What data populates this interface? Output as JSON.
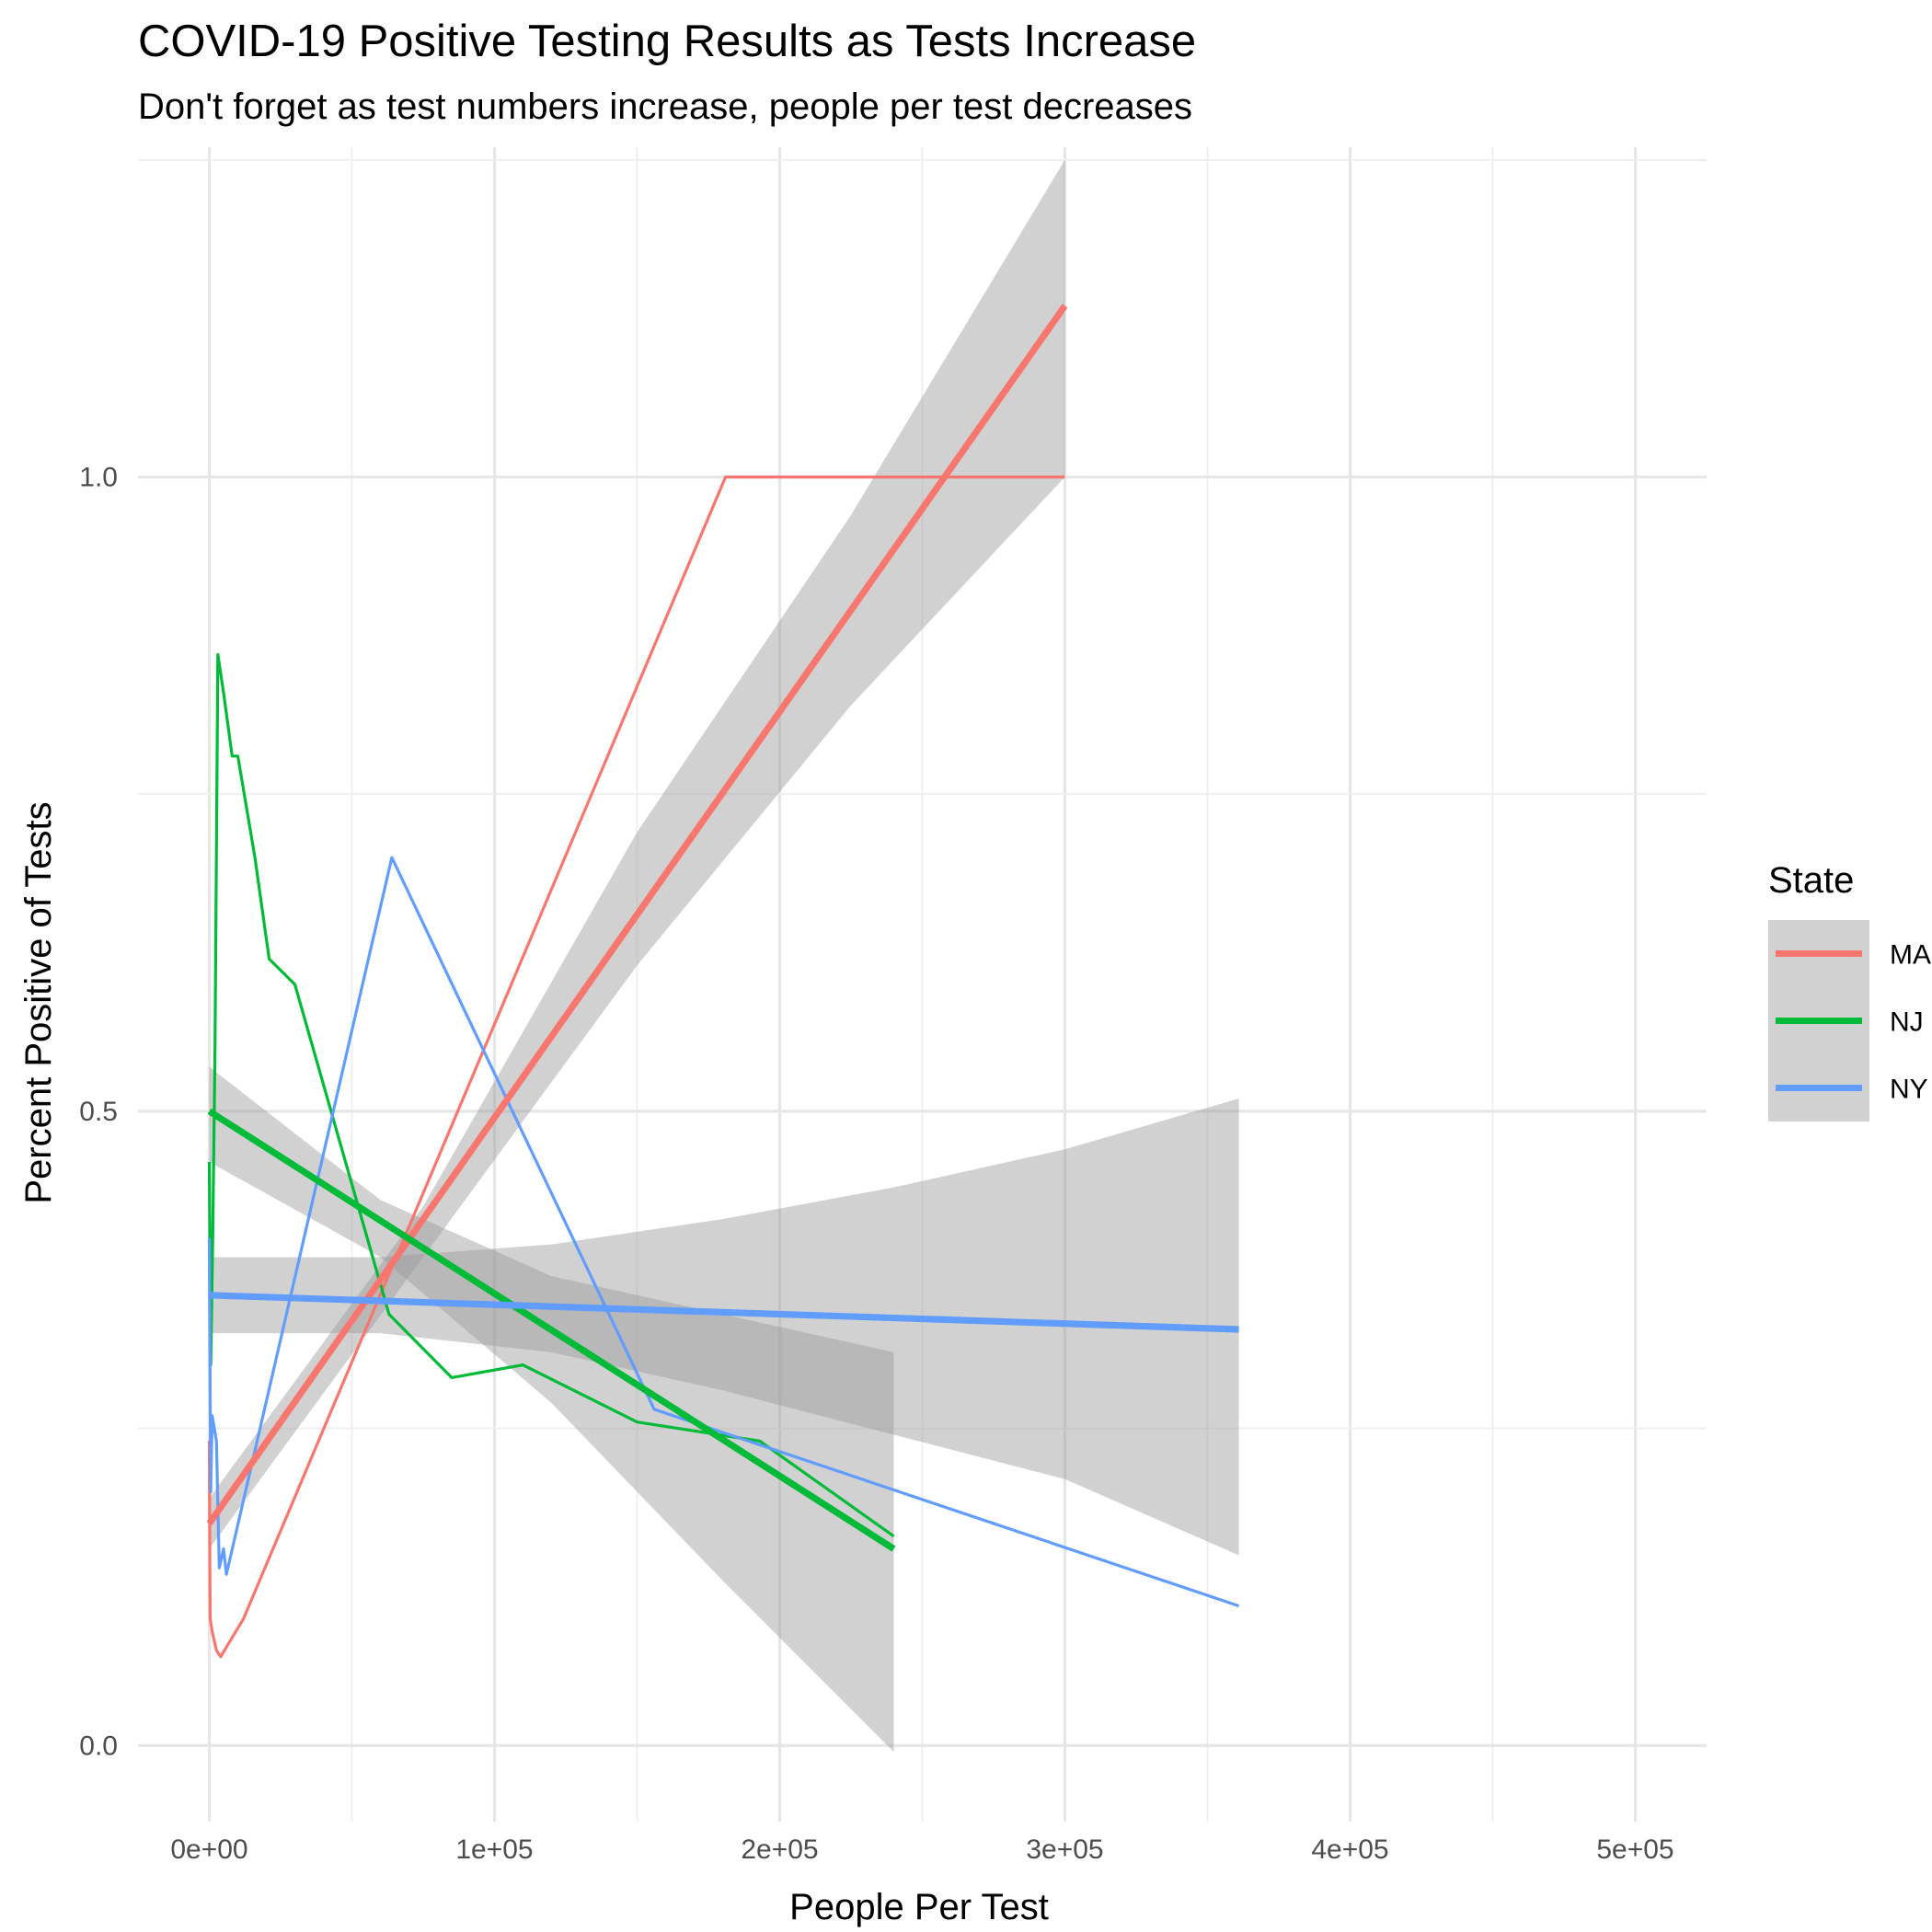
{
  "chart_data": {
    "type": "line",
    "title": "COVID-19 Positive Testing Results as Tests Increase",
    "subtitle": "Don't forget as test numbers increase, people per test decreases",
    "xlabel": "People Per Test",
    "ylabel": "Percent Positive of Tests",
    "xlim": [
      -25000,
      525000
    ],
    "ylim": [
      -0.06,
      1.26
    ],
    "x_ticks": [
      0,
      100000,
      200000,
      300000,
      400000,
      500000
    ],
    "x_tick_labels": [
      "0e+00",
      "1e+05",
      "2e+05",
      "3e+05",
      "4e+05",
      "5e+05"
    ],
    "y_ticks": [
      0.0,
      0.5,
      1.0
    ],
    "y_tick_labels": [
      "0.0",
      "0.5",
      "1.0"
    ],
    "grid": true,
    "legend": {
      "title": "State",
      "position": "right"
    },
    "series": [
      {
        "name": "MA",
        "color": "#F8766D",
        "points": [
          [
            0,
            0.24
          ],
          [
            300,
            0.1
          ],
          [
            1000,
            0.09
          ],
          [
            2500,
            0.075
          ],
          [
            4000,
            0.07
          ],
          [
            12000,
            0.1
          ],
          [
            181000,
            1.0
          ],
          [
            300000,
            1.0
          ]
        ],
        "trend": {
          "x": [
            0,
            300000
          ],
          "y": [
            0.175,
            1.135
          ]
        },
        "band": {
          "x": [
            0,
            75000,
            150000,
            225000,
            300000
          ],
          "lower": [
            0.155,
            0.385,
            0.615,
            0.82,
            1.0
          ],
          "upper": [
            0.195,
            0.425,
            0.72,
            0.97,
            1.25
          ]
        }
      },
      {
        "name": "NJ",
        "color": "#00BA38",
        "points": [
          [
            0,
            0.46
          ],
          [
            500,
            0.3
          ],
          [
            1200,
            0.4
          ],
          [
            2000,
            0.55
          ],
          [
            3000,
            0.86
          ],
          [
            5000,
            0.83
          ],
          [
            8000,
            0.78
          ],
          [
            10000,
            0.78
          ],
          [
            16000,
            0.7
          ],
          [
            21000,
            0.62
          ],
          [
            30000,
            0.6
          ],
          [
            63000,
            0.34
          ],
          [
            85000,
            0.29
          ],
          [
            110000,
            0.3
          ],
          [
            150000,
            0.255
          ],
          [
            193000,
            0.24
          ],
          [
            240000,
            0.165
          ]
        ],
        "trend": {
          "x": [
            0,
            240000
          ],
          "y": [
            0.5,
            0.155
          ]
        },
        "band": {
          "x": [
            0,
            60000,
            120000,
            180000,
            240000
          ],
          "lower": [
            0.46,
            0.385,
            0.27,
            0.13,
            -0.005
          ],
          "upper": [
            0.535,
            0.43,
            0.37,
            0.34,
            0.31
          ]
        }
      },
      {
        "name": "NY",
        "color": "#619CFF",
        "points": [
          [
            0,
            0.4
          ],
          [
            500,
            0.2
          ],
          [
            1000,
            0.26
          ],
          [
            2500,
            0.24
          ],
          [
            3500,
            0.14
          ],
          [
            5000,
            0.155
          ],
          [
            6000,
            0.135
          ],
          [
            64000,
            0.7
          ],
          [
            156000,
            0.265
          ],
          [
            361000,
            0.11
          ]
        ],
        "trend": {
          "x": [
            0,
            361000
          ],
          "y": [
            0.355,
            0.328
          ]
        },
        "band": {
          "x": [
            0,
            60000,
            120000,
            180000,
            240000,
            300000,
            361000
          ],
          "lower": [
            0.325,
            0.325,
            0.31,
            0.28,
            0.245,
            0.21,
            0.15
          ],
          "upper": [
            0.385,
            0.385,
            0.395,
            0.415,
            0.44,
            0.47,
            0.51
          ]
        }
      }
    ]
  }
}
